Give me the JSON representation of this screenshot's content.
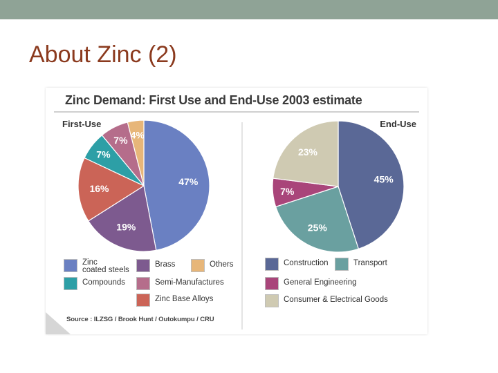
{
  "slide": {
    "title": "About Zinc (2)"
  },
  "figure": {
    "title": "Zinc Demand: First Use and End-Use 2003 estimate",
    "source": "Source : ILZSG / Brook Hunt / Outokumpu / CRU"
  },
  "chart_data": [
    {
      "type": "pie",
      "title": "First-Use",
      "categories": [
        "Zinc coated steels",
        "Brass",
        "Zinc Base Alloys",
        "Compounds",
        "Semi-Manufactures",
        "Others"
      ],
      "values": [
        47,
        19,
        16,
        7,
        7,
        4
      ],
      "labels": [
        "47%",
        "19%",
        "16%",
        "7%",
        "7%",
        "4%"
      ],
      "colors": [
        "#6a80c2",
        "#7d5a8f",
        "#cb6457",
        "#2d9fa6",
        "#b56d8b",
        "#e7b679"
      ]
    },
    {
      "type": "pie",
      "title": "End-Use",
      "categories": [
        "Construction",
        "Transport",
        "General Engineering",
        "Consumer & Electrical Goods"
      ],
      "values": [
        45,
        25,
        7,
        23
      ],
      "labels": [
        "45%",
        "25%",
        "7%",
        "23%"
      ],
      "colors": [
        "#5a6896",
        "#6aa0a0",
        "#a9457a",
        "#cfcab2"
      ]
    }
  ],
  "legend_first": [
    {
      "label": "Zinc\ncoated steels",
      "color": "#6a80c2"
    },
    {
      "label": "Brass",
      "color": "#7d5a8f"
    },
    {
      "label": "Others",
      "color": "#e7b679"
    },
    {
      "label": "Compounds",
      "color": "#2d9fa6"
    },
    {
      "label": "Semi-Manufactures",
      "color": "#b56d8b"
    },
    {
      "label": "Zinc Base Alloys",
      "color": "#cb6457"
    }
  ],
  "legend_end": [
    {
      "label": "Construction",
      "color": "#5a6896"
    },
    {
      "label": "Transport",
      "color": "#6aa0a0"
    },
    {
      "label": "General Engineering",
      "color": "#a9457a"
    },
    {
      "label": "Consumer & Electrical Goods",
      "color": "#cfcab2"
    }
  ]
}
